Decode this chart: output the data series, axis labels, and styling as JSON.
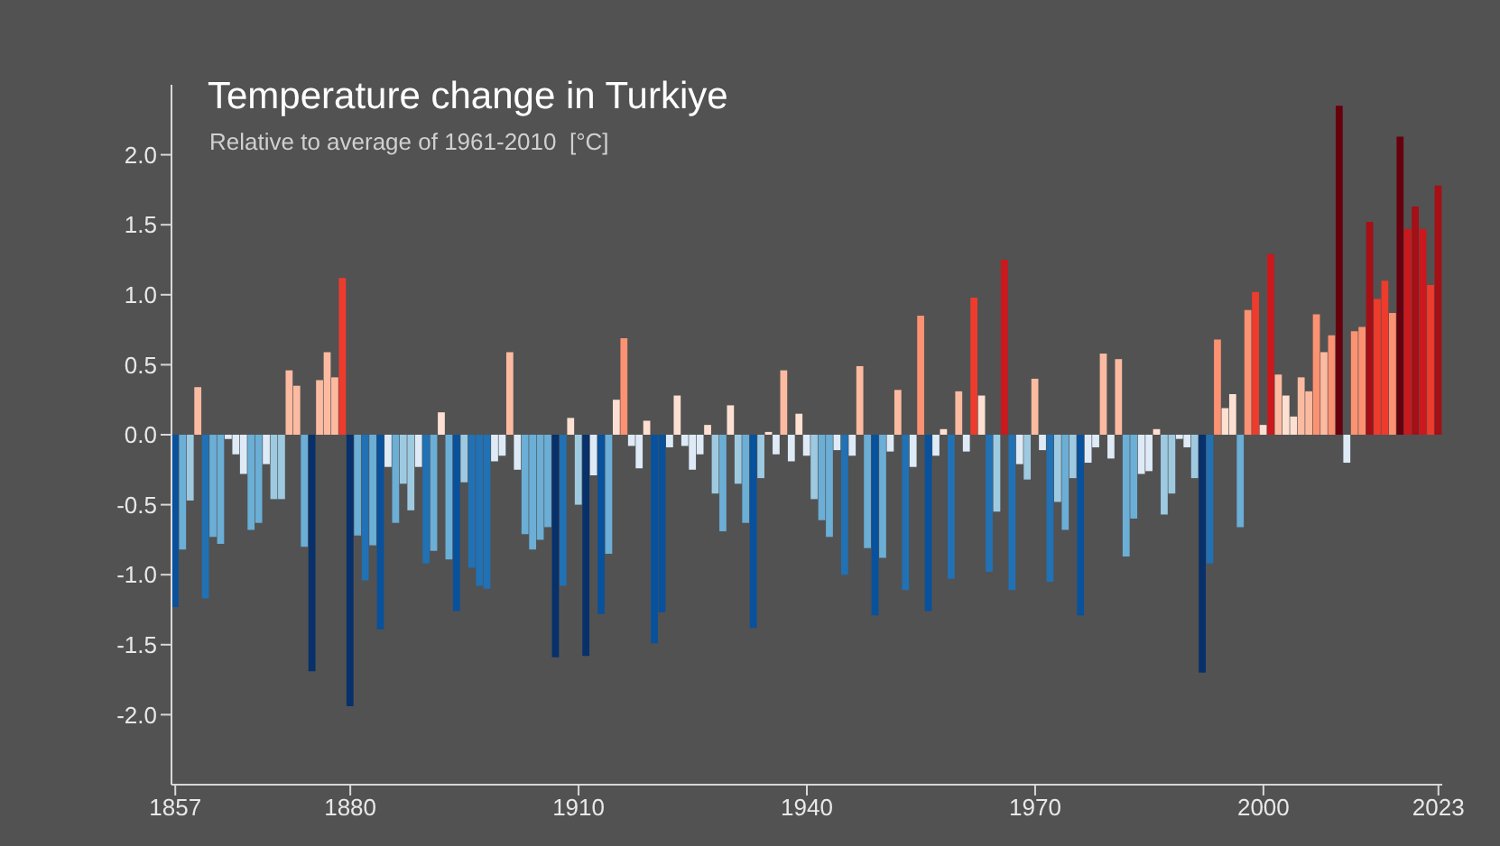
{
  "chart_data": {
    "type": "bar",
    "title": "Temperature change in Turkiye",
    "subtitle": "Relative to average of 1961-2010  [°C]",
    "x": [
      1857,
      1858,
      1859,
      1860,
      1861,
      1862,
      1863,
      1864,
      1865,
      1866,
      1867,
      1868,
      1869,
      1870,
      1871,
      1872,
      1873,
      1874,
      1875,
      1876,
      1877,
      1878,
      1879,
      1880,
      1881,
      1882,
      1883,
      1884,
      1885,
      1886,
      1887,
      1888,
      1889,
      1890,
      1891,
      1892,
      1893,
      1894,
      1895,
      1896,
      1897,
      1898,
      1899,
      1900,
      1901,
      1902,
      1903,
      1904,
      1905,
      1906,
      1907,
      1908,
      1909,
      1910,
      1911,
      1912,
      1913,
      1914,
      1915,
      1916,
      1917,
      1918,
      1919,
      1920,
      1921,
      1922,
      1923,
      1924,
      1925,
      1926,
      1927,
      1928,
      1929,
      1930,
      1931,
      1932,
      1933,
      1934,
      1935,
      1936,
      1937,
      1938,
      1939,
      1940,
      1941,
      1942,
      1943,
      1944,
      1945,
      1946,
      1947,
      1948,
      1949,
      1950,
      1951,
      1952,
      1953,
      1954,
      1955,
      1956,
      1957,
      1958,
      1959,
      1960,
      1961,
      1962,
      1963,
      1964,
      1965,
      1966,
      1967,
      1968,
      1969,
      1970,
      1971,
      1972,
      1973,
      1974,
      1975,
      1976,
      1977,
      1978,
      1979,
      1980,
      1981,
      1982,
      1983,
      1984,
      1985,
      1986,
      1987,
      1988,
      1989,
      1990,
      1991,
      1992,
      1993,
      1994,
      1995,
      1996,
      1997,
      1998,
      1999,
      2000,
      2001,
      2002,
      2003,
      2004,
      2005,
      2006,
      2007,
      2008,
      2009,
      2010,
      2011,
      2012,
      2013,
      2014,
      2015,
      2016,
      2017,
      2018,
      2019,
      2020,
      2021,
      2022,
      2023
    ],
    "values": [
      -1.23,
      -0.82,
      -0.47,
      0.34,
      -1.17,
      -0.73,
      -0.78,
      -0.03,
      -0.14,
      -0.28,
      -0.68,
      -0.63,
      -0.21,
      -0.46,
      -0.46,
      0.46,
      0.35,
      -0.8,
      -1.69,
      0.39,
      0.59,
      0.41,
      1.12,
      -1.94,
      -0.72,
      -1.04,
      -0.79,
      -1.39,
      -0.23,
      -0.63,
      -0.35,
      -0.54,
      -0.23,
      -0.92,
      -0.83,
      0.16,
      -0.89,
      -1.26,
      -0.34,
      -0.95,
      -1.08,
      -1.1,
      -0.19,
      -0.15,
      0.59,
      -0.25,
      -0.71,
      -0.82,
      -0.75,
      -0.66,
      -1.59,
      -1.08,
      0.12,
      -0.5,
      -1.58,
      -0.29,
      -1.28,
      -0.85,
      0.25,
      0.69,
      -0.08,
      -0.24,
      0.1,
      -1.49,
      -1.27,
      -0.09,
      0.28,
      -0.08,
      -0.25,
      -0.14,
      0.07,
      -0.42,
      -0.69,
      0.21,
      -0.35,
      -0.63,
      -1.38,
      -0.31,
      0.02,
      -0.14,
      0.46,
      -0.19,
      0.15,
      -0.15,
      -0.46,
      -0.61,
      -0.73,
      -0.11,
      -1.0,
      -0.15,
      0.49,
      -0.81,
      -1.29,
      -0.88,
      -0.12,
      0.32,
      -1.11,
      -0.23,
      0.85,
      -1.26,
      -0.15,
      0.04,
      -1.03,
      0.31,
      -0.12,
      0.98,
      0.28,
      -0.98,
      -0.55,
      1.25,
      -1.11,
      -0.21,
      -0.32,
      0.4,
      -0.11,
      -1.05,
      -0.48,
      -0.68,
      -0.31,
      -1.29,
      -0.2,
      -0.09,
      0.58,
      -0.17,
      0.54,
      -0.87,
      -0.6,
      -0.28,
      -0.26,
      0.04,
      -0.57,
      -0.42,
      -0.03,
      -0.09,
      -0.31,
      -1.7,
      -0.92,
      0.68,
      0.19,
      0.29,
      -0.66,
      0.89,
      1.02,
      0.07,
      1.29,
      0.43,
      0.28,
      0.13,
      0.41,
      0.31,
      0.86,
      0.59,
      0.71,
      2.35,
      -0.2,
      0.74,
      0.77,
      1.52,
      0.97,
      1.1,
      0.87,
      2.13,
      1.47,
      1.63,
      1.47,
      1.07,
      1.78
    ],
    "colors": [
      "#08519c",
      "#6baed6",
      "#9ecae1",
      "#fcbba1",
      "#2171b5",
      "#6baed6",
      "#6baed6",
      "#deebf7",
      "#deebf7",
      "#deebf7",
      "#6baed6",
      "#6baed6",
      "#deebf7",
      "#9ecae1",
      "#9ecae1",
      "#fcbba1",
      "#fcbba1",
      "#6baed6",
      "#08306b",
      "#fcbba1",
      "#fcbba1",
      "#fcbba1",
      "#ef3b2c",
      "#08306b",
      "#6baed6",
      "#2171b5",
      "#6baed6",
      "#08519c",
      "#deebf7",
      "#6baed6",
      "#9ecae1",
      "#9ecae1",
      "#deebf7",
      "#2171b5",
      "#6baed6",
      "#fee0d2",
      "#6baed6",
      "#08519c",
      "#9ecae1",
      "#2171b5",
      "#2171b5",
      "#2171b5",
      "#deebf7",
      "#deebf7",
      "#fcbba1",
      "#deebf7",
      "#6baed6",
      "#6baed6",
      "#6baed6",
      "#6baed6",
      "#08306b",
      "#2171b5",
      "#fee0d2",
      "#9ecae1",
      "#08306b",
      "#deebf7",
      "#08519c",
      "#6baed6",
      "#fee0d2",
      "#fc9272",
      "#deebf7",
      "#deebf7",
      "#fee0d2",
      "#08519c",
      "#08519c",
      "#deebf7",
      "#fee0d2",
      "#deebf7",
      "#deebf7",
      "#deebf7",
      "#fee0d2",
      "#9ecae1",
      "#6baed6",
      "#fee0d2",
      "#9ecae1",
      "#6baed6",
      "#08519c",
      "#9ecae1",
      "#fee0d2",
      "#deebf7",
      "#fcbba1",
      "#deebf7",
      "#fee0d2",
      "#deebf7",
      "#9ecae1",
      "#6baed6",
      "#6baed6",
      "#deebf7",
      "#2171b5",
      "#deebf7",
      "#fcbba1",
      "#6baed6",
      "#08519c",
      "#6baed6",
      "#deebf7",
      "#fcbba1",
      "#2171b5",
      "#deebf7",
      "#fc9272",
      "#08519c",
      "#deebf7",
      "#fee0d2",
      "#2171b5",
      "#fcbba1",
      "#deebf7",
      "#ef3b2c",
      "#fee0d2",
      "#2171b5",
      "#9ecae1",
      "#cb181d",
      "#2171b5",
      "#deebf7",
      "#9ecae1",
      "#fcbba1",
      "#deebf7",
      "#2171b5",
      "#9ecae1",
      "#6baed6",
      "#9ecae1",
      "#08519c",
      "#deebf7",
      "#deebf7",
      "#fcbba1",
      "#deebf7",
      "#fcbba1",
      "#6baed6",
      "#6baed6",
      "#deebf7",
      "#deebf7",
      "#fee0d2",
      "#9ecae1",
      "#9ecae1",
      "#deebf7",
      "#deebf7",
      "#9ecae1",
      "#08306b",
      "#2171b5",
      "#fc9272",
      "#fee0d2",
      "#fee0d2",
      "#6baed6",
      "#fc9272",
      "#ef3b2c",
      "#fee0d2",
      "#cb181d",
      "#fcbba1",
      "#fee0d2",
      "#fee0d2",
      "#fcbba1",
      "#fcbba1",
      "#fc9272",
      "#fcbba1",
      "#fc9272",
      "#67000d",
      "#deebf7",
      "#fc9272",
      "#fc9272",
      "#a50f15",
      "#ef3b2c",
      "#ef3b2c",
      "#fc9272",
      "#67000d",
      "#cb181d",
      "#a50f15",
      "#cb181d",
      "#ef3b2c",
      "#a50f15"
    ],
    "xlim": [
      1856.5,
      2023.5
    ],
    "xticks": [
      1857,
      1880,
      1910,
      1940,
      1970,
      2000,
      2023
    ],
    "ylim": [
      -2.5,
      2.5
    ],
    "yticks": [
      {
        "value": -2,
        "label": "-2.0"
      },
      {
        "value": -1.5,
        "label": "-1.5"
      },
      {
        "value": -1,
        "label": "-1.0"
      },
      {
        "value": -0.5,
        "label": "-0.5"
      },
      {
        "value": 0,
        "label": "0.0"
      },
      {
        "value": 0.5,
        "label": "0.5"
      },
      {
        "value": 1,
        "label": "1.0"
      },
      {
        "value": 1.5,
        "label": "1.5"
      },
      {
        "value": 2,
        "label": "2.0"
      }
    ]
  }
}
